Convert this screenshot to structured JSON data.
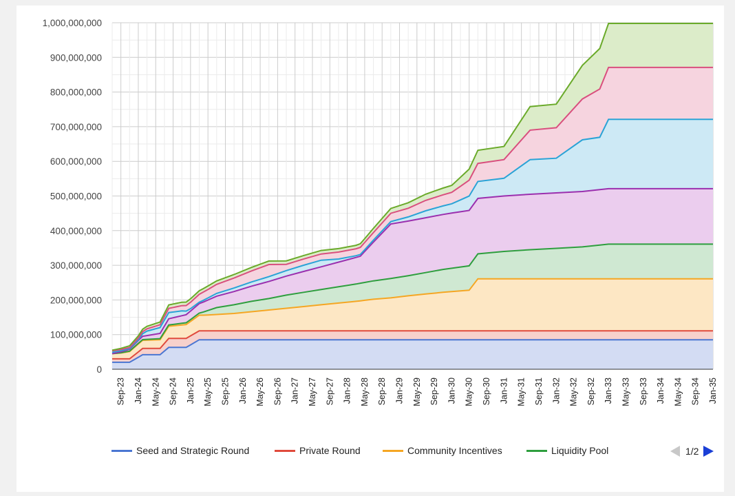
{
  "chart_data": {
    "type": "area",
    "stacked": true,
    "grid": true,
    "legend_position": "bottom",
    "y_tick_labels": [
      "0",
      "100,000,000",
      "200,000,000",
      "300,000,000",
      "400,000,000",
      "500,000,000",
      "600,000,000",
      "700,000,000",
      "800,000,000",
      "900,000,000",
      "1,000,000,000"
    ],
    "y_ticks": [
      0,
      100000000,
      200000000,
      300000000,
      400000000,
      500000000,
      600000000,
      700000000,
      800000000,
      900000000,
      1000000000
    ],
    "ylim": [
      0,
      1000000000
    ],
    "x_tick_labels": [
      "Sep-23",
      "Jan-24",
      "May-24",
      "Sep-24",
      "Jan-25",
      "May-25",
      "Sep-25",
      "Jan-26",
      "May-26",
      "Sep-26",
      "Jan-27",
      "May-27",
      "Sep-27",
      "Jan-28",
      "May-28",
      "Sep-28",
      "Jan-29",
      "May-29",
      "Sep-29",
      "Jan-30",
      "May-30",
      "Sep-30",
      "Jan-31",
      "May-31",
      "Sep-31",
      "Jan-32",
      "May-32",
      "Sep-32",
      "Jan-33",
      "May-33",
      "Sep-33",
      "Jan-34",
      "May-34",
      "Sep-34",
      "Jan-35"
    ],
    "x_tick_month_index": [
      2,
      6,
      10,
      14,
      18,
      22,
      26,
      30,
      34,
      38,
      42,
      46,
      50,
      54,
      58,
      62,
      66,
      70,
      74,
      78,
      82,
      86,
      90,
      94,
      98,
      102,
      106,
      110,
      114,
      118,
      122,
      126,
      130,
      134,
      138
    ],
    "x_start": "Jul-23",
    "x_end": "Jan-35",
    "series": [
      {
        "name": "Seed and Strategic Round",
        "color": "#4a76d2",
        "fill": "#d3dcf3",
        "points": [
          [
            0,
            20000000
          ],
          [
            4,
            20000000
          ],
          [
            7,
            42000000
          ],
          [
            11,
            42000000
          ],
          [
            13,
            63000000
          ],
          [
            17,
            63000000
          ],
          [
            20,
            85000000
          ],
          [
            138,
            85000000
          ]
        ]
      },
      {
        "name": "Private Round",
        "color": "#e04a3c",
        "fill": "#f7d1cc",
        "points": [
          [
            0,
            10000000
          ],
          [
            4,
            10000000
          ],
          [
            7,
            18000000
          ],
          [
            11,
            18000000
          ],
          [
            13,
            26000000
          ],
          [
            17,
            26000000
          ],
          [
            20,
            26000000
          ],
          [
            138,
            26000000
          ]
        ]
      },
      {
        "name": "Community Incentives",
        "color": "#f5a623",
        "fill": "#fde7c4",
        "points": [
          [
            0,
            15000000
          ],
          [
            2,
            17000000
          ],
          [
            4,
            21000000
          ],
          [
            6,
            23000000
          ],
          [
            11,
            25000000
          ],
          [
            13,
            35000000
          ],
          [
            17,
            40000000
          ],
          [
            20,
            45000000
          ],
          [
            21,
            45000000
          ],
          [
            24,
            47000000
          ],
          [
            28,
            50000000
          ],
          [
            32,
            55000000
          ],
          [
            36,
            60000000
          ],
          [
            40,
            65000000
          ],
          [
            44,
            70000000
          ],
          [
            48,
            75000000
          ],
          [
            52,
            80000000
          ],
          [
            56,
            85000000
          ],
          [
            58,
            88000000
          ],
          [
            60,
            91000000
          ],
          [
            64,
            95000000
          ],
          [
            68,
            101000000
          ],
          [
            72,
            106000000
          ],
          [
            76,
            111000000
          ],
          [
            80,
            115000000
          ],
          [
            82,
            117000000
          ],
          [
            84,
            150000000
          ],
          [
            138,
            150000000
          ]
        ]
      },
      {
        "name": "Liquidity Pool",
        "color": "#2e9e3e",
        "fill": "#cfe8d2",
        "points": [
          [
            0,
            0
          ],
          [
            20,
            6000000
          ],
          [
            24,
            20000000
          ],
          [
            28,
            25000000
          ],
          [
            32,
            30000000
          ],
          [
            36,
            33000000
          ],
          [
            40,
            38000000
          ],
          [
            44,
            41000000
          ],
          [
            48,
            44000000
          ],
          [
            52,
            47000000
          ],
          [
            56,
            50000000
          ],
          [
            60,
            53000000
          ],
          [
            64,
            56000000
          ],
          [
            68,
            58000000
          ],
          [
            72,
            62000000
          ],
          [
            76,
            66000000
          ],
          [
            80,
            69000000
          ],
          [
            84,
            72000000
          ],
          [
            90,
            79000000
          ],
          [
            96,
            84000000
          ],
          [
            102,
            88000000
          ],
          [
            108,
            92000000
          ],
          [
            114,
            100000000
          ],
          [
            138,
            100000000
          ]
        ]
      },
      {
        "name": "",
        "color": "#9b2fae",
        "fill": "#ebcdee",
        "points": [
          [
            0,
            0
          ],
          [
            57,
            78000000
          ],
          [
            64,
            157000000
          ],
          [
            84,
            160000000
          ],
          [
            90,
            160000000
          ],
          [
            96,
            160000000
          ],
          [
            102,
            160000000
          ],
          [
            108,
            160000000
          ],
          [
            114,
            160000000
          ],
          [
            138,
            160000000
          ]
        ]
      },
      {
        "name": "",
        "color": "#2aa3d6",
        "fill": "#cde9f5",
        "points": [
          [
            0,
            4000000
          ],
          [
            4,
            2000000
          ],
          [
            6,
            2000000
          ],
          [
            8,
            13000000
          ],
          [
            11,
            17000000
          ],
          [
            13,
            18000000
          ],
          [
            16,
            14000000
          ],
          [
            18,
            7000000
          ],
          [
            20,
            4000000
          ],
          [
            22,
            6000000
          ],
          [
            24,
            8000000
          ],
          [
            28,
            10000000
          ],
          [
            32,
            12000000
          ],
          [
            36,
            14000000
          ],
          [
            40,
            16000000
          ],
          [
            44,
            18000000
          ],
          [
            48,
            19000000
          ],
          [
            52,
            9000000
          ],
          [
            56,
            5000000
          ],
          [
            58,
            5000000
          ],
          [
            64,
            7000000
          ],
          [
            68,
            12000000
          ],
          [
            72,
            20000000
          ],
          [
            78,
            27000000
          ],
          [
            84,
            49000000
          ],
          [
            90,
            51000000
          ],
          [
            96,
            100000000
          ],
          [
            102,
            100000000
          ],
          [
            108,
            149000000
          ],
          [
            112,
            151000000
          ],
          [
            114,
            200000000
          ],
          [
            138,
            200000000
          ]
        ]
      },
      {
        "name": "",
        "color": "#d94f7e",
        "fill": "#f6d4df",
        "points": [
          [
            0,
            4000000
          ],
          [
            4,
            3000000
          ],
          [
            7,
            6000000
          ],
          [
            11,
            8000000
          ],
          [
            13,
            12000000
          ],
          [
            17,
            16000000
          ],
          [
            20,
            23000000
          ],
          [
            24,
            26000000
          ],
          [
            28,
            29000000
          ],
          [
            32,
            32000000
          ],
          [
            36,
            35000000
          ],
          [
            40,
            18000000
          ],
          [
            44,
            18000000
          ],
          [
            48,
            18000000
          ],
          [
            52,
            20000000
          ],
          [
            56,
            20000000
          ],
          [
            60,
            22000000
          ],
          [
            64,
            24000000
          ],
          [
            68,
            25000000
          ],
          [
            72,
            30000000
          ],
          [
            78,
            33000000
          ],
          [
            84,
            52000000
          ],
          [
            90,
            54000000
          ],
          [
            96,
            85000000
          ],
          [
            102,
            88000000
          ],
          [
            108,
            118000000
          ],
          [
            114,
            150000000
          ],
          [
            138,
            150000000
          ]
        ]
      },
      {
        "name": "",
        "color": "#6aaa2a",
        "fill": "#dcecc9",
        "points": [
          [
            0,
            2000000
          ],
          [
            4,
            5000000
          ],
          [
            7,
            7000000
          ],
          [
            11,
            8000000
          ],
          [
            13,
            10000000
          ],
          [
            17,
            10000000
          ],
          [
            20,
            10000000
          ],
          [
            24,
            10000000
          ],
          [
            28,
            10000000
          ],
          [
            32,
            10000000
          ],
          [
            36,
            10000000
          ],
          [
            40,
            10000000
          ],
          [
            44,
            10000000
          ],
          [
            48,
            10000000
          ],
          [
            52,
            10000000
          ],
          [
            56,
            10000000
          ],
          [
            60,
            12000000
          ],
          [
            64,
            14000000
          ],
          [
            68,
            16000000
          ],
          [
            72,
            18000000
          ],
          [
            78,
            20000000
          ],
          [
            84,
            38000000
          ],
          [
            90,
            38000000
          ],
          [
            96,
            68000000
          ],
          [
            102,
            68000000
          ],
          [
            108,
            97000000
          ],
          [
            114,
            127000000
          ],
          [
            138,
            127000000
          ]
        ]
      }
    ]
  },
  "legend": {
    "items": [
      {
        "label": "Seed and Strategic Round",
        "color": "#4a76d2"
      },
      {
        "label": "Private Round",
        "color": "#e04a3c"
      },
      {
        "label": "Community Incentives",
        "color": "#f5a623"
      },
      {
        "label": "Liquidity Pool",
        "color": "#2e9e3e"
      }
    ],
    "page_label": "1/2"
  }
}
